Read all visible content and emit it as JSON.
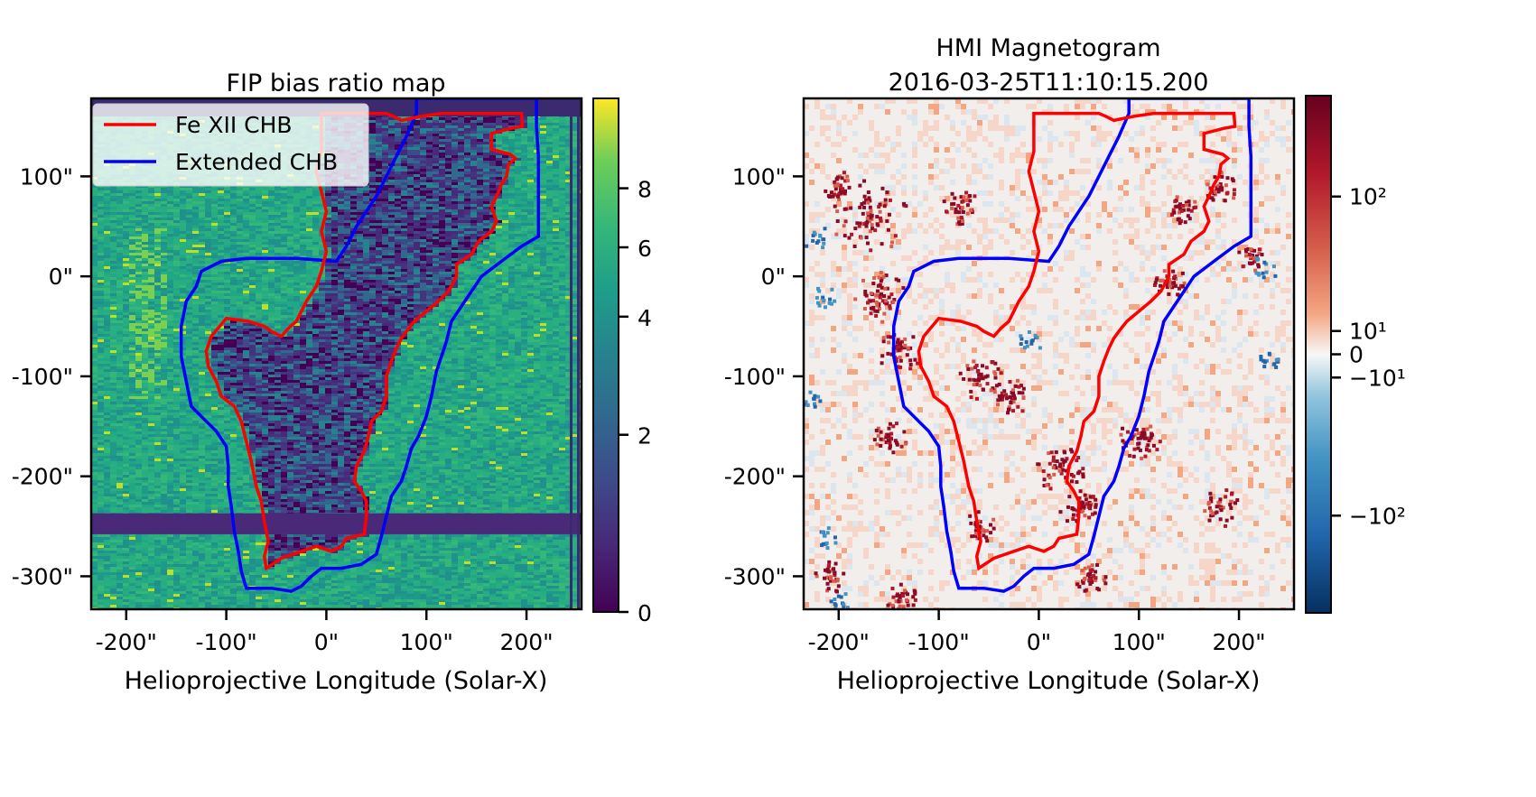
{
  "chart_data": [
    {
      "type": "heatmap",
      "title": "FIP bias ratio map",
      "xlabel": "Helioprojective Longitude (Solar-X)",
      "ylabel": "",
      "xlim": [
        -235,
        255
      ],
      "ylim": [
        -333,
        178
      ],
      "x_ticks": [
        -200,
        -100,
        0,
        100,
        200
      ],
      "x_tick_labels": [
        "-200\"",
        "-100\"",
        "0\"",
        "100\"",
        "200\""
      ],
      "y_ticks": [
        100,
        0,
        -100,
        -200,
        -300
      ],
      "y_tick_labels": [
        "100\"",
        "0\"",
        "-100\"",
        "-200\"",
        "-300\""
      ],
      "colormap": "viridis",
      "colorbar": {
        "ticks": [
          8,
          6,
          4,
          2,
          0
        ],
        "tick_labels": [
          "8",
          "6",
          "4",
          "2",
          "0"
        ],
        "range": [
          0,
          9.5
        ]
      },
      "legend": {
        "placement": "upper-left",
        "entries": [
          {
            "label": "Fe XII CHB",
            "color": "#ff0000"
          },
          {
            "label": "Extended CHB",
            "color": "#0000ff"
          }
        ]
      },
      "series": [
        {
          "name": "Fe XII CHB",
          "color": "#ff0000",
          "points": [
            [
              -5,
              163
            ],
            [
              60,
              163
            ],
            [
              67,
              160
            ],
            [
              75,
              156
            ],
            [
              95,
              160
            ],
            [
              115,
              163
            ],
            [
              160,
              163
            ],
            [
              195,
              163
            ],
            [
              196,
              150
            ],
            [
              185,
              148
            ],
            [
              165,
              143
            ],
            [
              165,
              127
            ],
            [
              184,
              122
            ],
            [
              189,
              118
            ],
            [
              182,
              112
            ],
            [
              180,
              100
            ],
            [
              175,
              92
            ],
            [
              170,
              80
            ],
            [
              165,
              70
            ],
            [
              170,
              55
            ],
            [
              165,
              45
            ],
            [
              152,
              35
            ],
            [
              145,
              22
            ],
            [
              130,
              12
            ],
            [
              130,
              0
            ],
            [
              122,
              -15
            ],
            [
              112,
              -25
            ],
            [
              100,
              -35
            ],
            [
              88,
              -45
            ],
            [
              80,
              -55
            ],
            [
              75,
              -62
            ],
            [
              70,
              -72
            ],
            [
              65,
              -85
            ],
            [
              60,
              -100
            ],
            [
              60,
              -110
            ],
            [
              60,
              -120
            ],
            [
              55,
              -135
            ],
            [
              45,
              -145
            ],
            [
              42,
              -160
            ],
            [
              38,
              -175
            ],
            [
              30,
              -190
            ],
            [
              28,
              -205
            ],
            [
              35,
              -215
            ],
            [
              40,
              -225
            ],
            [
              40,
              -240
            ],
            [
              38,
              -258
            ],
            [
              20,
              -262
            ],
            [
              15,
              -270
            ],
            [
              5,
              -275
            ],
            [
              -10,
              -270
            ],
            [
              -25,
              -275
            ],
            [
              -45,
              -282
            ],
            [
              -60,
              -292
            ],
            [
              -62,
              -280
            ],
            [
              -58,
              -265
            ],
            [
              -62,
              -245
            ],
            [
              -65,
              -225
            ],
            [
              -70,
              -210
            ],
            [
              -75,
              -185
            ],
            [
              -80,
              -165
            ],
            [
              -85,
              -145
            ],
            [
              -92,
              -130
            ],
            [
              -105,
              -120
            ],
            [
              -110,
              -105
            ],
            [
              -118,
              -90
            ],
            [
              -120,
              -75
            ],
            [
              -115,
              -60
            ],
            [
              -100,
              -42
            ],
            [
              -78,
              -45
            ],
            [
              -62,
              -50
            ],
            [
              -55,
              -55
            ],
            [
              -45,
              -60
            ],
            [
              -38,
              -52
            ],
            [
              -30,
              -45
            ],
            [
              -20,
              -25
            ],
            [
              -10,
              -10
            ],
            [
              -5,
              5
            ],
            [
              0,
              25
            ],
            [
              -5,
              45
            ],
            [
              0,
              65
            ],
            [
              -5,
              85
            ],
            [
              -10,
              105
            ],
            [
              -5,
              125
            ],
            [
              -5,
              163
            ]
          ]
        },
        {
          "name": "Extended CHB",
          "color": "#0000ff",
          "points": [
            [
              90,
              178
            ],
            [
              90,
              163
            ],
            [
              80,
              140
            ],
            [
              70,
              120
            ],
            [
              60,
              100
            ],
            [
              50,
              80
            ],
            [
              40,
              65
            ],
            [
              30,
              50
            ],
            [
              20,
              30
            ],
            [
              10,
              15
            ],
            [
              -30,
              18
            ],
            [
              -80,
              18
            ],
            [
              -105,
              15
            ],
            [
              -125,
              5
            ],
            [
              -130,
              -10
            ],
            [
              -140,
              -25
            ],
            [
              -145,
              -50
            ],
            [
              -145,
              -80
            ],
            [
              -140,
              -105
            ],
            [
              -135,
              -130
            ],
            [
              -120,
              -145
            ],
            [
              -110,
              -155
            ],
            [
              -100,
              -170
            ],
            [
              -98,
              -190
            ],
            [
              -98,
              -210
            ],
            [
              -95,
              -230
            ],
            [
              -92,
              -255
            ],
            [
              -88,
              -275
            ],
            [
              -85,
              -295
            ],
            [
              -80,
              -312
            ],
            [
              -55,
              -312
            ],
            [
              -35,
              -315
            ],
            [
              -25,
              -310
            ],
            [
              -15,
              -300
            ],
            [
              -5,
              -292
            ],
            [
              15,
              -292
            ],
            [
              35,
              -288
            ],
            [
              50,
              -278
            ],
            [
              55,
              -260
            ],
            [
              60,
              -240
            ],
            [
              65,
              -220
            ],
            [
              75,
              -205
            ],
            [
              80,
              -190
            ],
            [
              85,
              -172
            ],
            [
              92,
              -160
            ],
            [
              100,
              -140
            ],
            [
              105,
              -120
            ],
            [
              110,
              -95
            ],
            [
              115,
              -80
            ],
            [
              120,
              -65
            ],
            [
              125,
              -45
            ],
            [
              135,
              -30
            ],
            [
              145,
              -15
            ],
            [
              155,
              0
            ],
            [
              175,
              15
            ],
            [
              195,
              30
            ],
            [
              212,
              40
            ],
            [
              212,
              80
            ],
            [
              212,
              100
            ],
            [
              212,
              120
            ],
            [
              210,
              150
            ],
            [
              210,
              178
            ]
          ]
        }
      ]
    },
    {
      "type": "heatmap",
      "title": "HMI Magnetogram\n2016-03-25T11:10:15.200",
      "title_lines": [
        "HMI Magnetogram",
        "2016-03-25T11:10:15.200"
      ],
      "xlabel": "Helioprojective Longitude (Solar-X)",
      "ylabel": "",
      "xlim": [
        -235,
        255
      ],
      "ylim": [
        -333,
        178
      ],
      "x_ticks": [
        -200,
        -100,
        0,
        100,
        200
      ],
      "x_tick_labels": [
        "-200\"",
        "-100\"",
        "0\"",
        "100\"",
        "200\""
      ],
      "y_ticks": [
        100,
        0,
        -100,
        -200,
        -300
      ],
      "y_tick_labels": [
        "100\"",
        "0\"",
        "-100\"",
        "-200\"",
        "-300\""
      ],
      "colormap": "RdBu_r",
      "colorbar": {
        "scale": "symlog",
        "tick_labels": [
          "10²",
          "10¹",
          "0",
          "−10¹",
          "−10²"
        ],
        "ticks": [
          100,
          10,
          0,
          -10,
          -100
        ]
      },
      "series": [
        {
          "name": "Fe XII CHB",
          "color": "#ff0000",
          "same_as": "FIP bias ratio map"
        },
        {
          "name": "Extended CHB",
          "color": "#0000ff",
          "same_as": "FIP bias ratio map"
        }
      ]
    }
  ]
}
